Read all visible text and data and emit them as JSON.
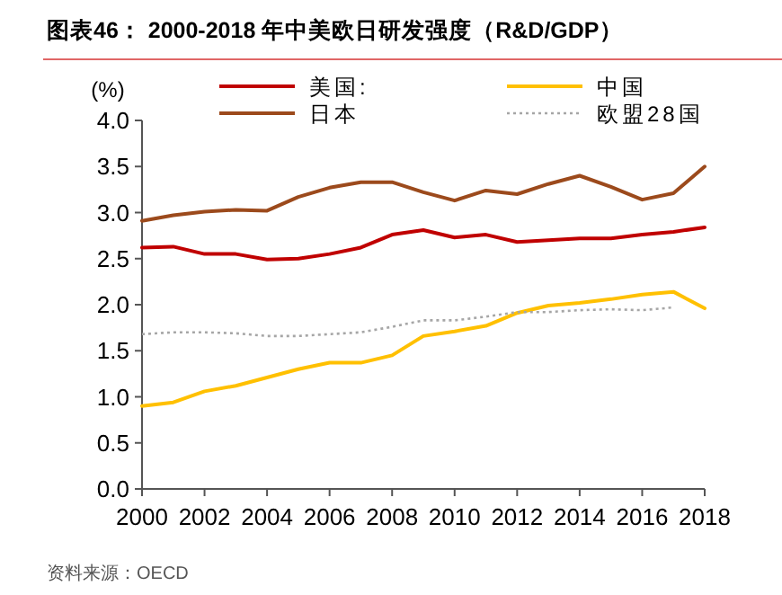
{
  "chart_data": {
    "type": "line",
    "title": "图表46：  2000-2018 年中美欧日研发强度（R&D/GDP）",
    "ylabel": "(%)",
    "annotations": [
      "资料来源：OECD"
    ],
    "x": [
      2000,
      2001,
      2002,
      2003,
      2004,
      2005,
      2006,
      2007,
      2008,
      2009,
      2010,
      2011,
      2012,
      2013,
      2014,
      2015,
      2016,
      2017,
      2018
    ],
    "xlim": [
      2000,
      2018
    ],
    "xticks": [
      2000,
      2002,
      2004,
      2006,
      2008,
      2010,
      2012,
      2014,
      2016,
      2018
    ],
    "ylim": [
      0,
      4
    ],
    "yticks": [
      {
        "value": 0,
        "label": "0.0"
      },
      0.5,
      {
        "value": 1,
        "label": "1.0"
      },
      1.5,
      {
        "value": 2,
        "label": "2.0"
      },
      2.5,
      {
        "value": 3,
        "label": "3.0"
      },
      3.5,
      {
        "value": 4,
        "label": "4.0"
      }
    ],
    "grid": false,
    "legend": "top",
    "marker": "none",
    "series": [
      {
        "name": "美国:",
        "color": "#c00000",
        "line_style": "solid",
        "values": [
          2.62,
          2.63,
          2.55,
          2.55,
          2.49,
          2.5,
          2.55,
          2.62,
          2.76,
          2.81,
          2.73,
          2.76,
          2.68,
          2.7,
          2.72,
          2.72,
          2.76,
          2.79,
          2.84
        ]
      },
      {
        "name": "中国",
        "color": "#ffc000",
        "line_style": "solid",
        "values": [
          0.9,
          0.94,
          1.06,
          1.12,
          1.21,
          1.3,
          1.37,
          1.37,
          1.45,
          1.66,
          1.71,
          1.77,
          1.91,
          1.99,
          2.02,
          2.06,
          2.11,
          2.14,
          1.96
        ]
      },
      {
        "name": "日本",
        "color": "#9c4a1c",
        "line_style": "solid",
        "values": [
          2.91,
          2.97,
          3.01,
          3.03,
          3.02,
          3.17,
          3.27,
          3.33,
          3.33,
          3.22,
          3.13,
          3.24,
          3.2,
          3.31,
          3.4,
          3.28,
          3.14,
          3.21,
          3.5
        ]
      },
      {
        "name": "欧盟28国",
        "color": "#a6a6a6",
        "line_style": "dotted",
        "values": [
          1.68,
          1.7,
          1.7,
          1.69,
          1.66,
          1.66,
          1.68,
          1.7,
          1.76,
          1.83,
          1.83,
          1.87,
          1.92,
          1.92,
          1.94,
          1.95,
          1.94,
          1.97,
          null
        ]
      }
    ]
  }
}
